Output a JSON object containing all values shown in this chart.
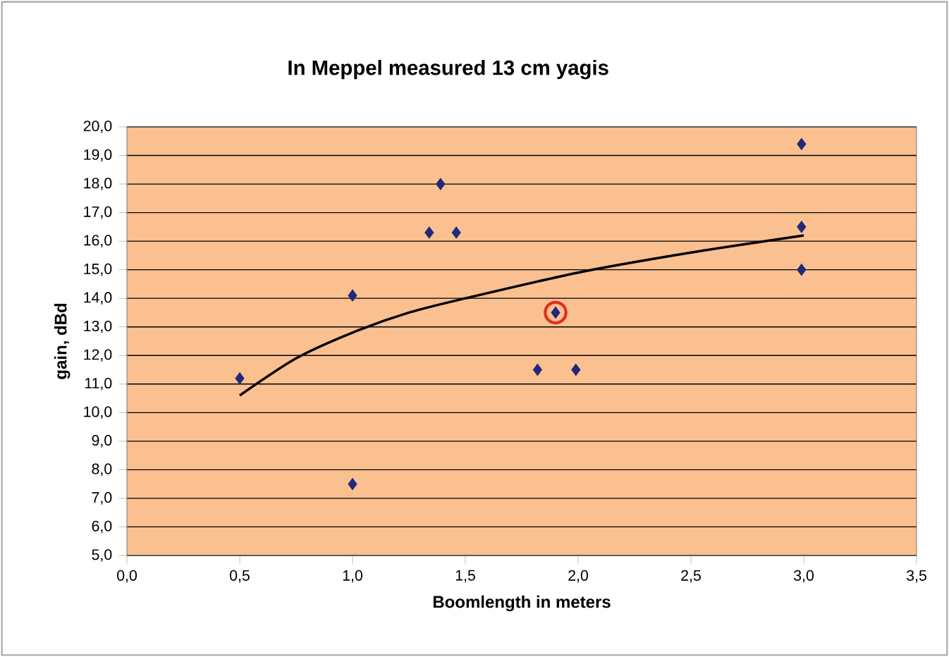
{
  "chart_data": {
    "type": "scatter",
    "title": "In Meppel measured 13 cm yagis",
    "xlabel": "Boomlength in meters",
    "ylabel": "gain, dBd",
    "xlim": [
      0,
      3.5
    ],
    "ylim": [
      5,
      20
    ],
    "xticks": [
      {
        "value": 0,
        "label": "0,0"
      },
      {
        "value": 0.5,
        "label": "0,5"
      },
      {
        "value": 1,
        "label": "1,0"
      },
      {
        "value": 1.5,
        "label": "1,5"
      },
      {
        "value": 2,
        "label": "2,0"
      },
      {
        "value": 2.5,
        "label": "2,5"
      },
      {
        "value": 3,
        "label": "3,0"
      },
      {
        "value": 3.5,
        "label": "3,5"
      }
    ],
    "yticks": [
      {
        "value": 5,
        "label": "5,0"
      },
      {
        "value": 6,
        "label": "6,0"
      },
      {
        "value": 7,
        "label": "7,0"
      },
      {
        "value": 8,
        "label": "8,0"
      },
      {
        "value": 9,
        "label": "9,0"
      },
      {
        "value": 10,
        "label": "10,0"
      },
      {
        "value": 11,
        "label": "11,0"
      },
      {
        "value": 12,
        "label": "12,0"
      },
      {
        "value": 13,
        "label": "13,0"
      },
      {
        "value": 14,
        "label": "14,0"
      },
      {
        "value": 15,
        "label": "15,0"
      },
      {
        "value": 16,
        "label": "16,0"
      },
      {
        "value": 17,
        "label": "17,0"
      },
      {
        "value": 18,
        "label": "18,0"
      },
      {
        "value": 19,
        "label": "19,0"
      },
      {
        "value": 20,
        "label": "20,0"
      }
    ],
    "grid": "y",
    "series": [
      {
        "color": "#1f2a7a",
        "marker": "diamond",
        "x": [
          0.5,
          1.0,
          1.0,
          1.34,
          1.39,
          1.46,
          1.82,
          1.9,
          1.99,
          2.99,
          2.99,
          2.99
        ],
        "values": [
          11.2,
          14.1,
          7.5,
          16.3,
          18.0,
          16.3,
          11.5,
          13.5,
          11.5,
          19.4,
          16.5,
          15.0
        ]
      },
      {
        "type": "line",
        "color": "#000000",
        "marker": "none",
        "x": [
          0.5,
          0.75,
          1.0,
          1.25,
          1.5,
          2.0,
          2.5,
          3.0
        ],
        "values": [
          10.6,
          11.9,
          12.8,
          13.5,
          14.0,
          14.9,
          15.6,
          16.2
        ]
      },
      {
        "color": "#e0301e",
        "marker": "circle",
        "x": [
          1.9
        ],
        "values": [
          13.5
        ]
      }
    ]
  }
}
